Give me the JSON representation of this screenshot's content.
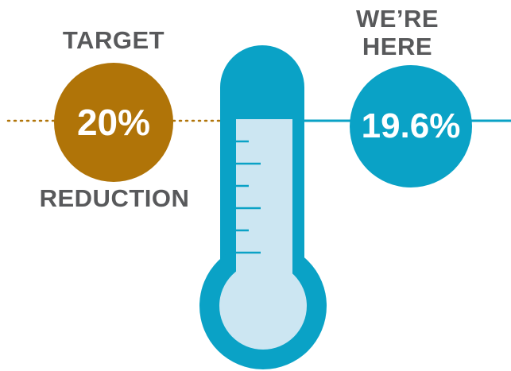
{
  "target": {
    "title": "TARGET",
    "value": "20%",
    "caption": "REDUCTION"
  },
  "current": {
    "title_line1": "WE’RE",
    "title_line2": "HERE",
    "value": "19.6%"
  },
  "colors": {
    "target_brown": "#b07408",
    "teal": "#0aa2c6",
    "thermometer_fill": "#cce6f2",
    "label_gray": "#58595b"
  }
}
